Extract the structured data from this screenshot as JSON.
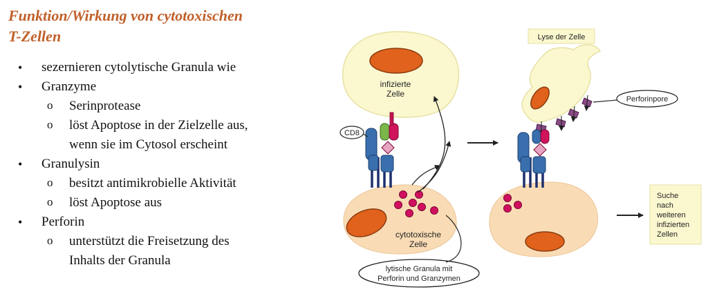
{
  "title": {
    "line1": "Funktion/Wirkung von cytotoxischen",
    "line2": "T-Zellen"
  },
  "list": {
    "item1": "sezernieren cytolytische Granula wie",
    "item2": "Granzyme",
    "item2_sub1": "Serinprotease",
    "item2_sub2_line1": "löst Apoptose in der Zielzelle aus,",
    "item2_sub2_line2": "wenn sie im Cytosol erscheint",
    "item3": "Granulysin",
    "item3_sub1": "besitzt antimikrobielle Aktivität",
    "item3_sub2": "löst Apoptose aus",
    "item4": "Perforin",
    "item4_sub1_line1": "unterstützt die Freisetzung des",
    "item4_sub1_line2": "Inhalts der Granula"
  },
  "markers": {
    "bullet": "•",
    "sub": "o"
  },
  "diagram": {
    "infected_cell_line1": "infizierte",
    "infected_cell_line2": "Zelle",
    "cd8": "CD8",
    "ctl_line1": "cytotoxische",
    "ctl_line2": "Zelle",
    "granula_line1": "lytische Granula mit",
    "granula_line2": "Perforin und Granzymen",
    "lysis": "Lyse der Zelle",
    "perforin_pore": "Perforinpore",
    "search_line1": "Suche",
    "search_line2": "nach",
    "search_line3": "weiteren",
    "search_line4": "infizierten",
    "search_line5": "Zellen"
  },
  "colors": {
    "title": "#c0602a",
    "infected_cell": "#fbf8cf",
    "ctl_cell": "#f9dcb5",
    "nucleus": "#e0621c",
    "granule": "#d10f5f",
    "receptor_blue": "#3a6fae",
    "receptor_navy": "#1e2f6e",
    "receptor_green": "#7ab648",
    "receptor_magenta": "#d0145c",
    "receptor_pink": "#e7a3c2",
    "pore_purple": "#8a4a86"
  }
}
